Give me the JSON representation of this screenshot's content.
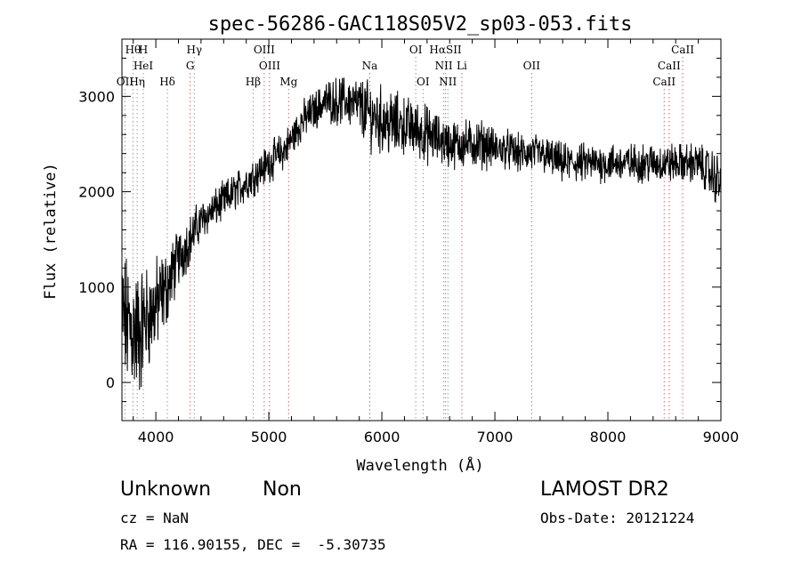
{
  "chart_data": {
    "type": "line",
    "title": "spec-56286-GAC118S05V2_sp03-053.fits",
    "xlabel": "Wavelength (Å)",
    "ylabel": "Flux (relative)",
    "xlim": [
      3700,
      9000
    ],
    "ylim": [
      -400,
      3600
    ],
    "xticks": [
      4000,
      5000,
      6000,
      7000,
      8000,
      9000
    ],
    "xtick_labels": [
      "4000",
      "5000",
      "6000",
      "7000",
      "8000",
      "9000"
    ],
    "yticks": [
      0,
      1000,
      2000,
      3000
    ],
    "ytick_labels": [
      "0",
      "1000",
      "2000",
      "3000"
    ],
    "grid": false,
    "series": [
      {
        "x": [
          3700,
          3750,
          3800,
          3850,
          3900,
          3950,
          4000,
          4050,
          4100,
          4150,
          4200,
          4250,
          4300,
          4350,
          4400,
          4450,
          4500,
          4550,
          4600,
          4650,
          4700,
          4750,
          4800,
          4850,
          4900,
          4950,
          5000,
          5050,
          5100,
          5150,
          5200,
          5250,
          5300,
          5350,
          5400,
          5450,
          5500,
          5600,
          5700,
          5800,
          5900,
          6000,
          6100,
          6200,
          6300,
          6400,
          6500,
          6600,
          6700,
          6800,
          6900,
          7000,
          7100,
          7200,
          7300,
          7400,
          7500,
          7600,
          7700,
          7800,
          7900,
          8000,
          8100,
          8200,
          8300,
          8400,
          8500,
          8600,
          8700,
          8800,
          8900,
          9000
        ],
        "y": [
          700,
          600,
          550,
          500,
          650,
          700,
          800,
          900,
          1000,
          1150,
          1300,
          1400,
          1500,
          1600,
          1700,
          1750,
          1800,
          1850,
          1900,
          1950,
          2000,
          2050,
          2100,
          2150,
          2200,
          2250,
          2300,
          2350,
          2400,
          2450,
          2550,
          2650,
          2750,
          2800,
          2850,
          2900,
          2950,
          2950,
          2950,
          2900,
          2800,
          2750,
          2700,
          2700,
          2650,
          2600,
          2550,
          2500,
          2500,
          2500,
          2500,
          2450,
          2450,
          2400,
          2400,
          2400,
          2350,
          2300,
          2300,
          2300,
          2300,
          2300,
          2300,
          2300,
          2300,
          2300,
          2300,
          2300,
          2300,
          2300,
          2200,
          2100
        ],
        "noise_amplitude": [
          700,
          700,
          700,
          700,
          600,
          500,
          500,
          450,
          400,
          350,
          300,
          300,
          250,
          250,
          200,
          200,
          200,
          200,
          200,
          200,
          200,
          200,
          200,
          200,
          200,
          200,
          200,
          200,
          200,
          200,
          200,
          200,
          200,
          200,
          200,
          200,
          200,
          250,
          250,
          300,
          350,
          350,
          350,
          300,
          300,
          300,
          250,
          250,
          250,
          250,
          250,
          200,
          200,
          200,
          200,
          200,
          200,
          200,
          200,
          200,
          200,
          200,
          200,
          200,
          200,
          200,
          200,
          200,
          200,
          200,
          250,
          300
        ]
      }
    ],
    "line_markers": [
      {
        "label": "Hθ",
        "x": 3798,
        "row": 1,
        "color": "#999999"
      },
      {
        "label": "H",
        "x": 3889,
        "row": 1,
        "color": "#999999"
      },
      {
        "label": "Hγ",
        "x": 4340,
        "row": 1,
        "color": "#999999"
      },
      {
        "label": "OIII",
        "x": 4959,
        "row": 1,
        "color": "#cc6666"
      },
      {
        "label": "OI",
        "x": 6300,
        "row": 1,
        "color": "#999999"
      },
      {
        "label": "HαSII",
        "x": 6563,
        "row": 1,
        "color": "#999999"
      },
      {
        "label": "CaII",
        "x": 8662,
        "row": 1,
        "color": "#cc6666"
      },
      {
        "label": "HeI",
        "x": 3889,
        "row": 2,
        "color": "#999999"
      },
      {
        "label": "G",
        "x": 4304,
        "row": 2,
        "color": "#cc6666"
      },
      {
        "label": "OIII",
        "x": 5007,
        "row": 2,
        "color": "#cc6666"
      },
      {
        "label": "Na",
        "x": 5893,
        "row": 2,
        "color": "#cc6666"
      },
      {
        "label": "NII",
        "x": 6548,
        "row": 2,
        "color": "#999999"
      },
      {
        "label": "Li",
        "x": 6708,
        "row": 2,
        "color": "#cc6666"
      },
      {
        "label": "OII",
        "x": 7325,
        "row": 2,
        "color": "#cc6666"
      },
      {
        "label": "CaII",
        "x": 8542,
        "row": 2,
        "color": "#cc6666"
      },
      {
        "label": "OII",
        "x": 3727,
        "row": 3,
        "color": "#999999"
      },
      {
        "label": "Hη",
        "x": 3835,
        "row": 3,
        "color": "#999999"
      },
      {
        "label": "Hδ",
        "x": 4102,
        "row": 3,
        "color": "#999999"
      },
      {
        "label": "Hβ",
        "x": 4861,
        "row": 3,
        "color": "#999999"
      },
      {
        "label": "Mg",
        "x": 5175,
        "row": 3,
        "color": "#cc6666"
      },
      {
        "label": "OI",
        "x": 6364,
        "row": 3,
        "color": "#999999"
      },
      {
        "label": "NII",
        "x": 6584,
        "row": 3,
        "color": "#999999"
      },
      {
        "label": "CaII",
        "x": 8498,
        "row": 3,
        "color": "#cc6666"
      }
    ]
  },
  "info": {
    "class_label": "Unknown",
    "subclass_label": "Non",
    "survey_label": "LAMOST DR2",
    "cz_label": "cz = NaN",
    "obs_date_label": "Obs-Date: 20121224",
    "coords_label": "RA = 116.90155, DEC =  -5.30735"
  }
}
